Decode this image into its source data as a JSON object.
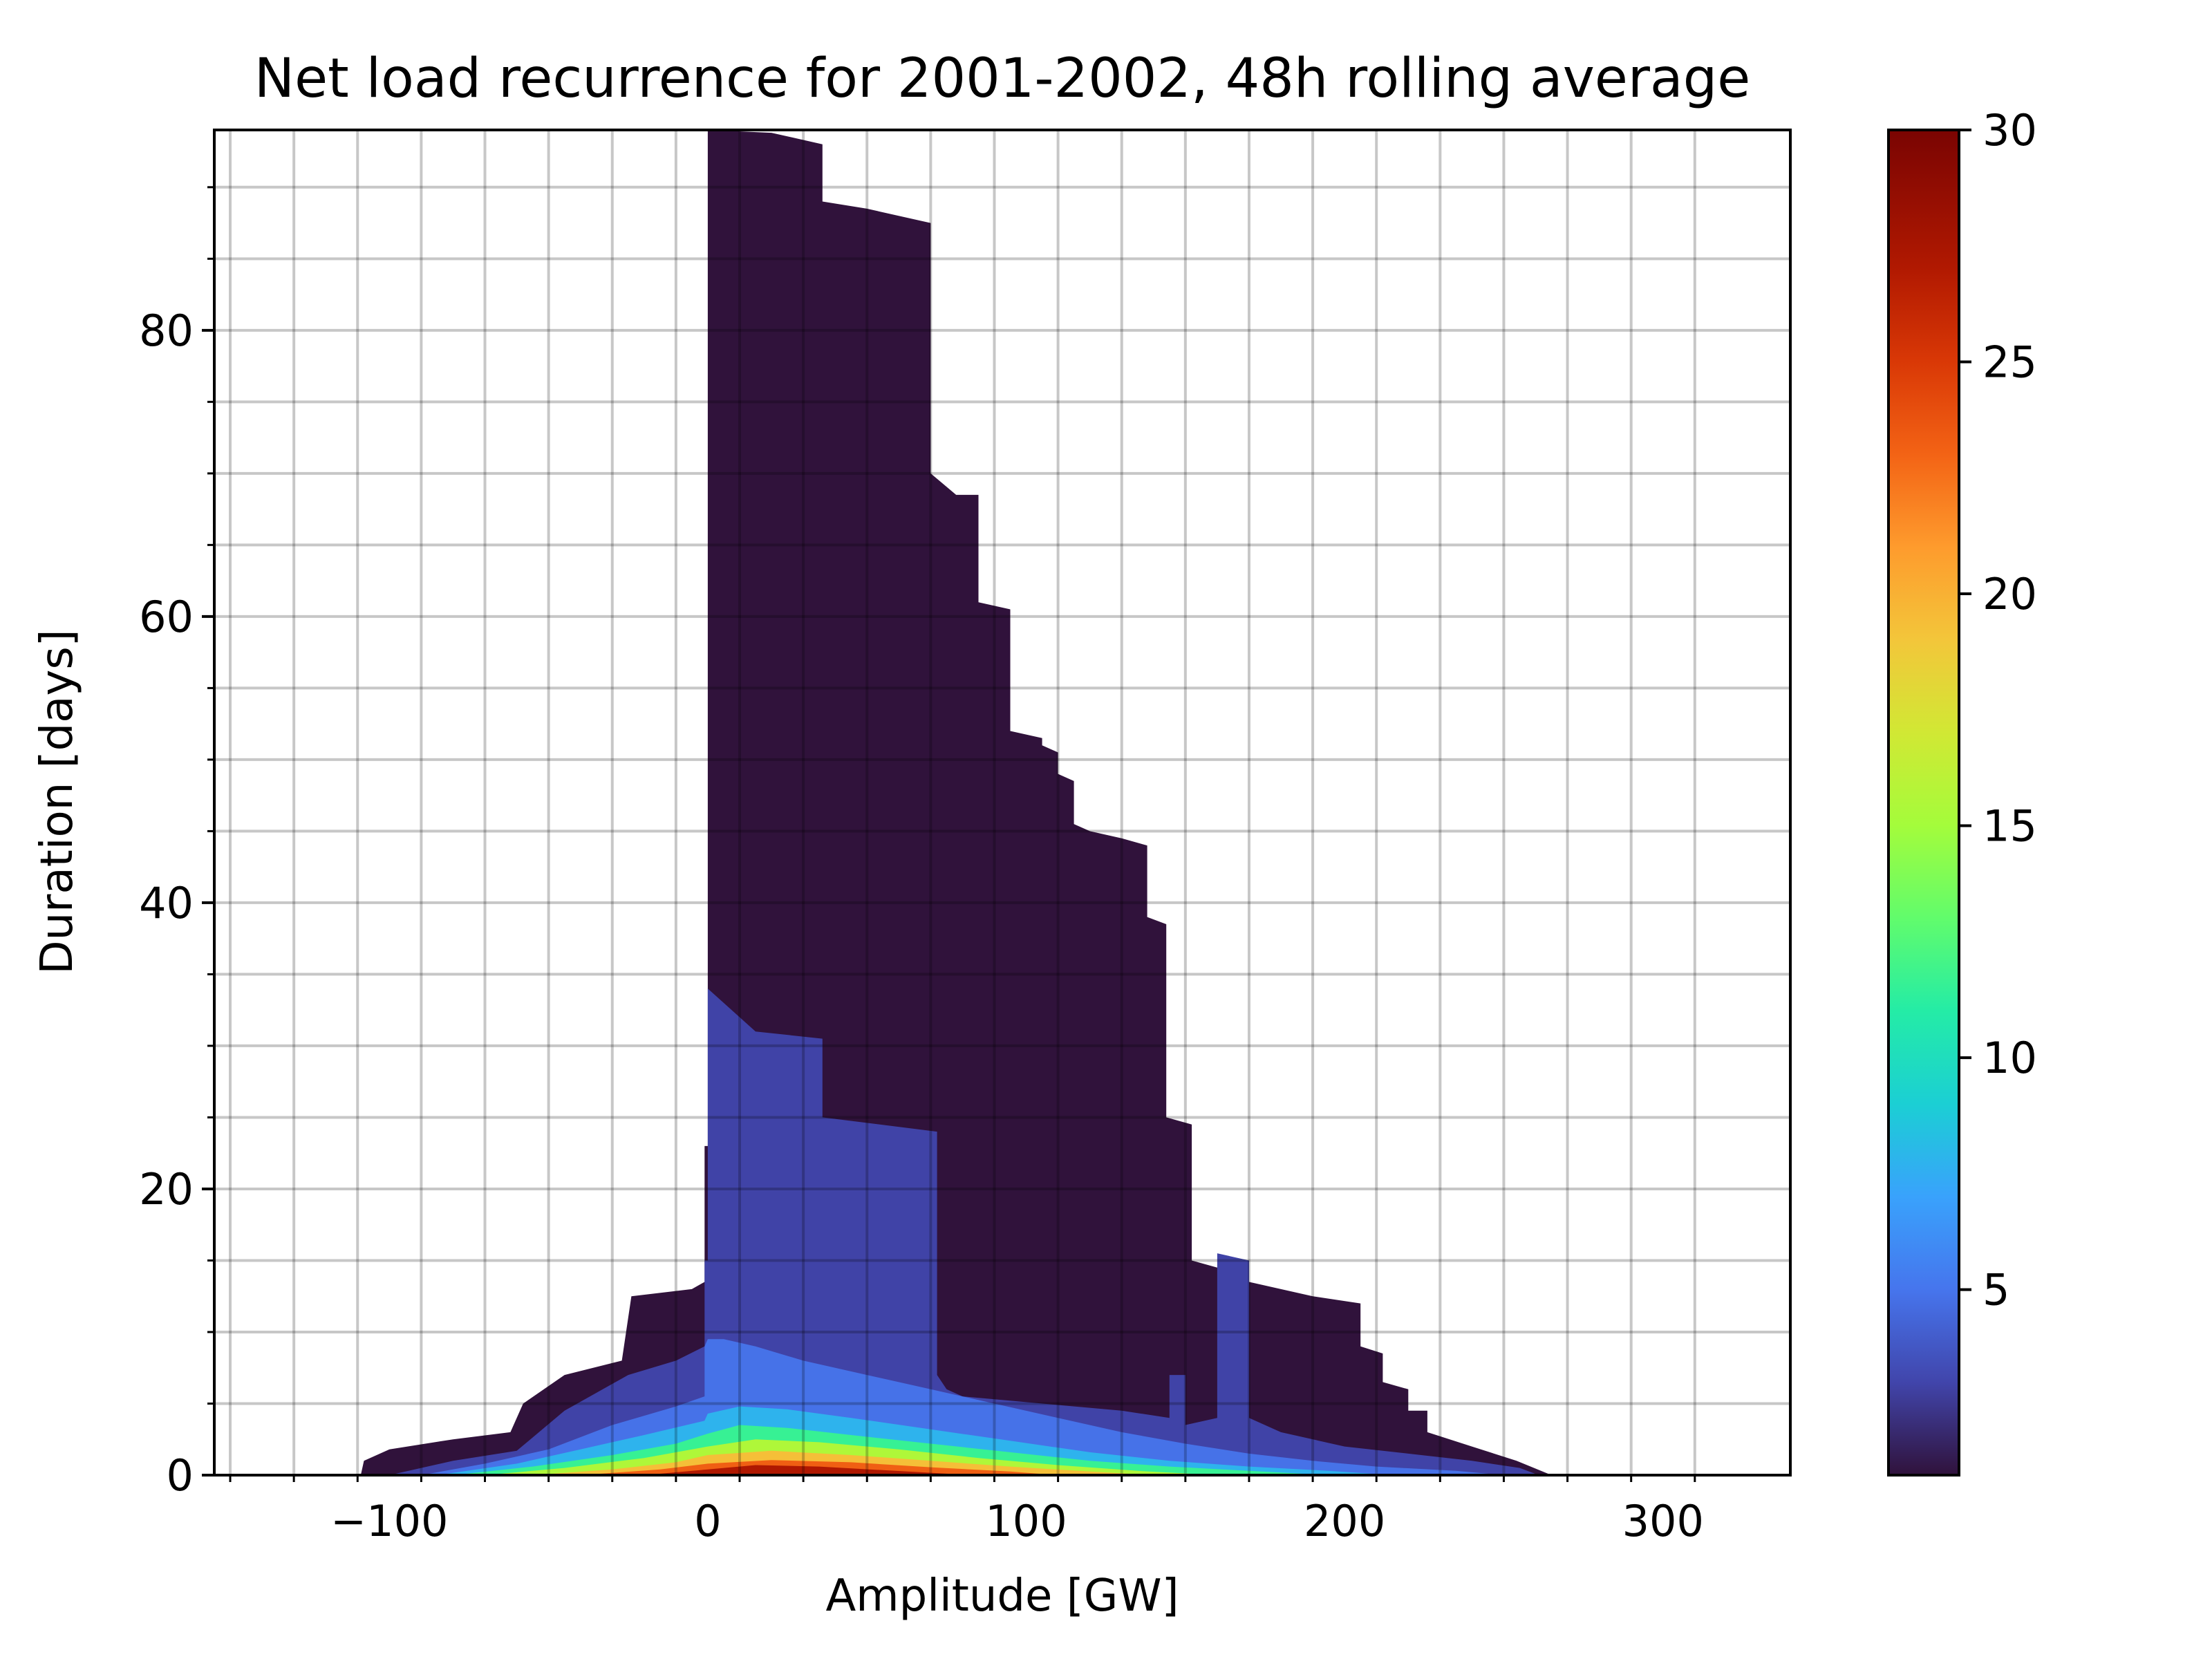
{
  "chart_data": {
    "type": "heatmap",
    "title": "Net load recurrence for 2001-2002, 48h rolling average",
    "xlabel": "Amplitude [GW]",
    "ylabel": "Duration [days]",
    "xlim": [
      -155,
      340
    ],
    "ylim": [
      0,
      94
    ],
    "x_ticks": [
      -100,
      0,
      100,
      200,
      300
    ],
    "x_tick_labels": [
      "−100",
      "0",
      "100",
      "200",
      "300"
    ],
    "y_ticks": [
      0,
      20,
      40,
      60,
      80
    ],
    "y_tick_labels": [
      "0",
      "20",
      "40",
      "60",
      "80"
    ],
    "grid": true,
    "colormap": "turbo",
    "colorbar": {
      "min": 1,
      "max": 30,
      "ticks": [
        5,
        10,
        15,
        20,
        25,
        30
      ],
      "tick_labels": [
        "5",
        "10",
        "15",
        "20",
        "25",
        "30"
      ]
    },
    "levels": [
      {
        "value": 1,
        "upper_boundary": [
          [
            -109,
            0
          ],
          [
            -108,
            1.0
          ],
          [
            -100,
            1.8
          ],
          [
            -80,
            2.5
          ],
          [
            -62,
            3.0
          ],
          [
            -58,
            5.0
          ],
          [
            -45,
            7.0
          ],
          [
            -27,
            8.0
          ],
          [
            -24,
            12.5
          ],
          [
            -5,
            13.0
          ],
          [
            -1,
            13.5
          ],
          [
            -1,
            23.0
          ],
          [
            0,
            23.0
          ],
          [
            0,
            94.0
          ],
          [
            20,
            93.8
          ],
          [
            36,
            93.0
          ],
          [
            36,
            89.0
          ],
          [
            50,
            88.5
          ],
          [
            70,
            87.5
          ],
          [
            70,
            70.0
          ],
          [
            78,
            68.5
          ],
          [
            85,
            68.5
          ],
          [
            85,
            61.0
          ],
          [
            95,
            60.5
          ],
          [
            95,
            52.0
          ],
          [
            105,
            51.5
          ],
          [
            105,
            51.0
          ],
          [
            110,
            50.5
          ],
          [
            110,
            49.0
          ],
          [
            115,
            48.5
          ],
          [
            115,
            45.5
          ],
          [
            120,
            45.0
          ],
          [
            130,
            44.5
          ],
          [
            138,
            44.0
          ],
          [
            138,
            39.0
          ],
          [
            144,
            38.5
          ],
          [
            144,
            25.0
          ],
          [
            152,
            24.5
          ],
          [
            152,
            15.0
          ],
          [
            160,
            14.5
          ],
          [
            170,
            13.5
          ],
          [
            190,
            12.5
          ],
          [
            205,
            12.0
          ],
          [
            205,
            9.0
          ],
          [
            212,
            8.5
          ],
          [
            212,
            6.5
          ],
          [
            220,
            6.0
          ],
          [
            220,
            4.5
          ],
          [
            226,
            4.5
          ],
          [
            226,
            3.0
          ],
          [
            240,
            2.0
          ],
          [
            254,
            1.0
          ],
          [
            265,
            0
          ]
        ]
      },
      {
        "value": 3,
        "upper_boundary": [
          [
            -100,
            0
          ],
          [
            -80,
            1.0
          ],
          [
            -60,
            1.7
          ],
          [
            -45,
            4.5
          ],
          [
            -25,
            7.0
          ],
          [
            -10,
            8.0
          ],
          [
            -1,
            9.0
          ],
          [
            -1,
            15.0
          ],
          [
            0,
            15.0
          ],
          [
            0,
            34.0
          ],
          [
            15,
            31.0
          ],
          [
            36,
            30.5
          ],
          [
            36,
            25.0
          ],
          [
            72,
            24.0
          ],
          [
            72,
            7.0
          ],
          [
            75,
            6.0
          ],
          [
            80,
            5.5
          ],
          [
            130,
            4.5
          ],
          [
            145,
            4.0
          ],
          [
            145,
            7.0
          ],
          [
            150,
            7.0
          ],
          [
            150,
            3.5
          ],
          [
            160,
            4.0
          ],
          [
            160,
            15.5
          ],
          [
            170,
            15.0
          ],
          [
            170,
            4.0
          ],
          [
            180,
            3.0
          ],
          [
            200,
            2.0
          ],
          [
            220,
            1.5
          ],
          [
            240,
            1.0
          ],
          [
            255,
            0.5
          ],
          [
            261,
            0
          ]
        ]
      },
      {
        "value": 5,
        "upper_boundary": [
          [
            -90,
            0
          ],
          [
            -70,
            0.8
          ],
          [
            -50,
            1.8
          ],
          [
            -30,
            3.5
          ],
          [
            -10,
            4.8
          ],
          [
            -1,
            5.5
          ],
          [
            -1,
            9.0
          ],
          [
            0,
            9.5
          ],
          [
            5,
            9.5
          ],
          [
            15,
            9.0
          ],
          [
            30,
            8.0
          ],
          [
            50,
            7.0
          ],
          [
            70,
            6.0
          ],
          [
            90,
            5.0
          ],
          [
            110,
            4.0
          ],
          [
            130,
            3.0
          ],
          [
            150,
            2.2
          ],
          [
            170,
            1.5
          ],
          [
            190,
            1.0
          ],
          [
            210,
            0.6
          ],
          [
            235,
            0.3
          ],
          [
            250,
            0
          ]
        ]
      },
      {
        "value": 8,
        "upper_boundary": [
          [
            -85,
            0
          ],
          [
            -60,
            0.8
          ],
          [
            -40,
            1.8
          ],
          [
            -20,
            2.8
          ],
          [
            -1,
            3.8
          ],
          [
            0,
            4.3
          ],
          [
            10,
            4.8
          ],
          [
            25,
            4.6
          ],
          [
            45,
            4.0
          ],
          [
            70,
            3.2
          ],
          [
            95,
            2.4
          ],
          [
            120,
            1.6
          ],
          [
            145,
            1.0
          ],
          [
            170,
            0.6
          ],
          [
            195,
            0.3
          ],
          [
            215,
            0
          ]
        ]
      },
      {
        "value": 12,
        "upper_boundary": [
          [
            -80,
            0
          ],
          [
            -55,
            0.6
          ],
          [
            -30,
            1.4
          ],
          [
            -10,
            2.2
          ],
          [
            0,
            2.9
          ],
          [
            10,
            3.5
          ],
          [
            25,
            3.3
          ],
          [
            45,
            2.8
          ],
          [
            70,
            2.2
          ],
          [
            95,
            1.6
          ],
          [
            120,
            1.0
          ],
          [
            145,
            0.6
          ],
          [
            170,
            0.3
          ],
          [
            195,
            0
          ]
        ]
      },
      {
        "value": 16,
        "upper_boundary": [
          [
            -70,
            0
          ],
          [
            -45,
            0.5
          ],
          [
            -20,
            1.2
          ],
          [
            0,
            2.0
          ],
          [
            15,
            2.5
          ],
          [
            35,
            2.3
          ],
          [
            60,
            1.8
          ],
          [
            85,
            1.2
          ],
          [
            110,
            0.7
          ],
          [
            135,
            0.3
          ],
          [
            160,
            0
          ]
        ]
      },
      {
        "value": 20,
        "upper_boundary": [
          [
            -55,
            0
          ],
          [
            -30,
            0.4
          ],
          [
            -10,
            0.9
          ],
          [
            0,
            1.4
          ],
          [
            20,
            1.7
          ],
          [
            45,
            1.4
          ],
          [
            70,
            1.0
          ],
          [
            95,
            0.6
          ],
          [
            120,
            0.25
          ],
          [
            140,
            0
          ]
        ]
      },
      {
        "value": 24,
        "upper_boundary": [
          [
            -40,
            0
          ],
          [
            -15,
            0.4
          ],
          [
            0,
            0.8
          ],
          [
            20,
            1.05
          ],
          [
            45,
            0.9
          ],
          [
            70,
            0.55
          ],
          [
            95,
            0.25
          ],
          [
            110,
            0
          ]
        ]
      },
      {
        "value": 28,
        "upper_boundary": [
          [
            -20,
            0
          ],
          [
            0,
            0.4
          ],
          [
            15,
            0.7
          ],
          [
            35,
            0.6
          ],
          [
            55,
            0.35
          ],
          [
            75,
            0.1
          ],
          [
            85,
            0
          ]
        ]
      }
    ]
  }
}
